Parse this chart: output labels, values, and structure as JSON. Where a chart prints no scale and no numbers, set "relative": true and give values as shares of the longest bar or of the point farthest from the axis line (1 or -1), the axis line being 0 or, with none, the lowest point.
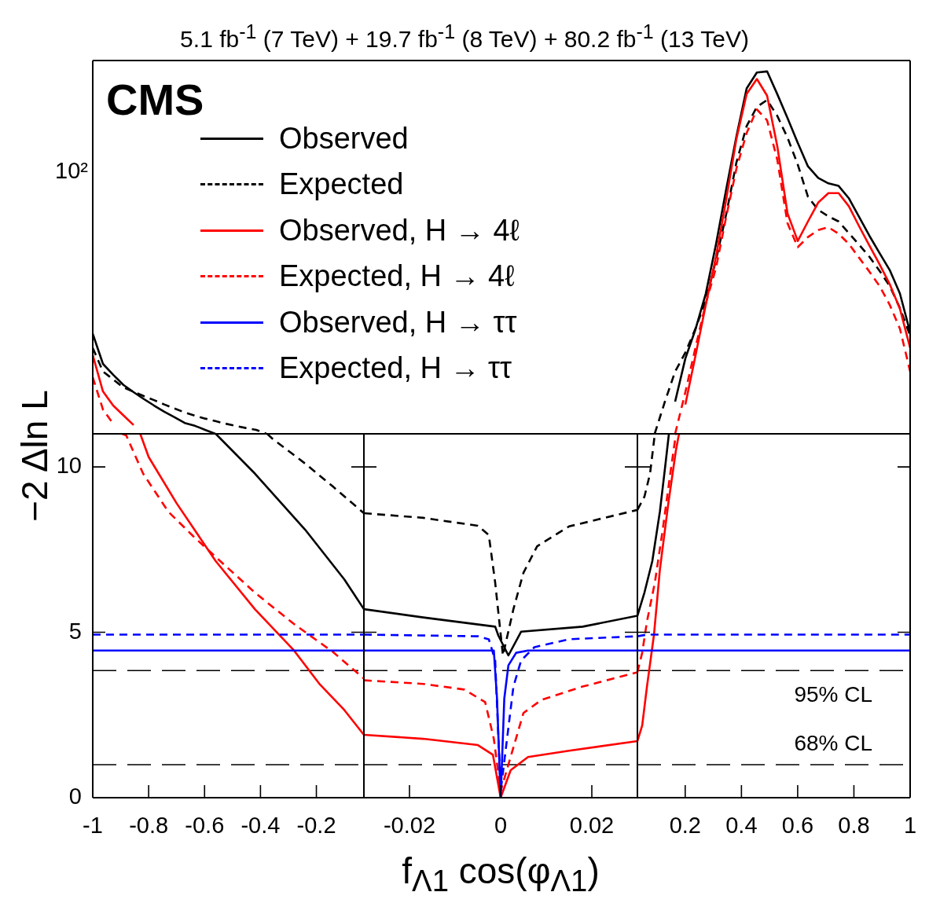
{
  "chart_data": [
    {
      "type": "line",
      "title": "5.1 fb$^{-1}$ (7 TeV) + 19.7 fb$^{-1}$ (8 TeV) + 80.2 fb$^{-1}$ (13 TeV)",
      "annotations": [
        "CMS",
        "10²"
      ],
      "legend": "top left",
      "relative": true,
      "tick_labels": false,
      "categories": [
        null,
        null,
        null,
        null,
        null,
        null,
        null,
        null,
        null,
        null,
        null,
        null,
        null,
        null,
        null,
        null,
        null,
        null,
        null,
        null,
        null,
        null,
        null,
        null,
        null,
        null,
        null,
        null,
        null,
        null,
        null,
        null,
        null,
        null,
        null,
        null,
        null,
        null,
        null,
        null,
        null,
        null,
        null,
        null,
        null,
        null,
        null,
        null,
        null,
        null,
        null,
        null,
        null,
        null,
        null,
        null,
        null,
        null,
        null,
        null,
        null,
        null,
        null,
        null,
        null,
        null,
        null,
        null,
        null,
        null,
        null,
        null,
        null,
        null,
        null,
        null,
        null,
        null,
        null,
        null,
        null
      ],
      "series": [
        {
          "name": "Observed",
          "color": "#000000",
          "values": [
            0.276,
            0.193,
            0.163,
            0.135,
            0.115,
            0.096,
            0.078,
            0.061,
            0.046,
            0.03,
            0.022,
            0.011,
            0,
            null,
            null,
            null,
            null,
            null,
            null,
            null,
            null,
            null,
            null,
            null,
            null,
            null,
            null,
            null,
            null,
            null,
            null,
            null,
            null,
            null,
            null,
            null,
            null,
            null,
            null,
            null,
            null,
            null,
            null,
            null,
            null,
            null,
            null,
            null,
            null,
            null,
            null,
            null,
            null,
            null,
            null,
            null,
            null,
            0.089,
            0.208,
            0.289,
            0.387,
            0.523,
            0.675,
            0.821,
            0.953,
            0.997,
            1,
            0.937,
            0.871,
            0.803,
            0.738,
            0.706,
            0.691,
            0.684,
            0.65,
            0.599,
            0.547,
            0.499,
            0.452,
            0.387,
            0.28
          ]
        },
        {
          "name": "Expected",
          "color": "#000000",
          "line_style": "dashed",
          "values": [
            0.237,
            0.172,
            0.15,
            0.128,
            0.116,
            0.104,
            0.093,
            0.081,
            0.07,
            0.059,
            0.05,
            0.042,
            0.035,
            0.028,
            0.022,
            0.016,
            0.011,
            0,
            null,
            null,
            null,
            null,
            null,
            null,
            null,
            null,
            null,
            null,
            null,
            null,
            null,
            null,
            null,
            null,
            null,
            null,
            null,
            null,
            null,
            null,
            null,
            null,
            null,
            null,
            null,
            null,
            null,
            null,
            null,
            null,
            null,
            null,
            null,
            null,
            null,
            0,
            0.089,
            0.172,
            0.224,
            0.291,
            0.368,
            0.48,
            0.606,
            0.749,
            0.849,
            0.902,
            0.921,
            0.877,
            0.817,
            0.743,
            0.654,
            0.618,
            0.6,
            0.586,
            0.554,
            0.522,
            0.489,
            0.45,
            0.408,
            0.347,
            0.271
          ]
        },
        {
          "name": "Observed, H → 4ℓ",
          "color": "#ff0000",
          "values": [
            0.217,
            0.117,
            0.078,
            0.051,
            0.024,
            null,
            null,
            null,
            null,
            null,
            null,
            null,
            null,
            null,
            null,
            null,
            null,
            null,
            null,
            null,
            null,
            null,
            null,
            null,
            null,
            null,
            null,
            null,
            null,
            null,
            null,
            null,
            null,
            null,
            null,
            null,
            null,
            null,
            null,
            null,
            null,
            null,
            null,
            null,
            null,
            null,
            null,
            null,
            null,
            null,
            null,
            null,
            null,
            null,
            null,
            null,
            null,
            null,
            0.081,
            0.217,
            0.356,
            0.489,
            0.647,
            0.814,
            0.938,
            0.979,
            0.933,
            0.793,
            0.608,
            0.532,
            0.586,
            0.638,
            0.664,
            0.664,
            0.628,
            0.573,
            0.52,
            0.468,
            0.413,
            0.345,
            0.237
          ]
        },
        {
          "name": "Expected, H → 4ℓ",
          "color": "#ff0000",
          "line_style": "dashed",
          "values": [
            0.156,
            0.067,
            0.028,
            null,
            null,
            null,
            null,
            null,
            null,
            null,
            null,
            null,
            null,
            null,
            null,
            null,
            null,
            null,
            null,
            null,
            null,
            null,
            null,
            null,
            null,
            null,
            null,
            null,
            null,
            null,
            null,
            null,
            null,
            null,
            null,
            null,
            null,
            null,
            null,
            null,
            null,
            null,
            null,
            null,
            null,
            null,
            null,
            null,
            null,
            null,
            null,
            null,
            null,
            null,
            null,
            null,
            null,
            0,
            0.115,
            0.239,
            0.36,
            0.458,
            0.599,
            0.732,
            0.83,
            0.895,
            0.865,
            0.756,
            0.581,
            0.515,
            0.543,
            0.562,
            0.57,
            0.552,
            0.524,
            0.486,
            0.448,
            0.408,
            0.356,
            0.29,
            0.172
          ]
        }
      ]
    },
    {
      "type": "line",
      "ylabel": "−2 Δln L",
      "xlim": [
        -1,
        -0.03
      ],
      "ylim": [
        0,
        11
      ],
      "xticks": [
        -1,
        -0.8,
        -0.6,
        -0.4,
        -0.2
      ],
      "yticks": [
        0,
        5,
        10
      ],
      "ref_lines": [
        {
          "axis": "y",
          "value": 3.84,
          "color": "#000000",
          "line_style": "dashed"
        },
        {
          "axis": "y",
          "value": 1,
          "color": "#000000",
          "line_style": "dashed"
        }
      ],
      "series": [
        {
          "name": "Observed",
          "color": "#000000",
          "x": [
            -0.56,
            -0.42,
            -0.24,
            -0.1,
            -0.03
          ],
          "values": [
            11,
            9.8,
            8.1,
            6.6,
            5.7
          ]
        },
        {
          "name": "Expected",
          "color": "#000000",
          "line_style": "dashed",
          "x": [
            -0.376,
            -0.357,
            -0.24,
            -0.14,
            -0.03
          ],
          "values": [
            11,
            10.85,
            10.1,
            9.4,
            8.6
          ]
        },
        {
          "name": "Observed, H → 4ℓ",
          "color": "#ff0000",
          "x": [
            -0.83,
            -0.8,
            -0.7,
            -0.56,
            -0.42,
            -0.28,
            -0.19,
            -0.1,
            -0.03
          ],
          "values": [
            11,
            10.3,
            8.9,
            7.15,
            5.7,
            4.45,
            3.45,
            2.65,
            1.9
          ]
        },
        {
          "name": "Expected, H → 4ℓ",
          "color": "#ff0000",
          "line_style": "dashed",
          "x": [
            -0.895,
            -0.88,
            -0.82,
            -0.73,
            -0.64,
            -0.55,
            -0.42,
            -0.28,
            -0.14,
            -0.03
          ],
          "values": [
            11,
            10.95,
            9.8,
            8.65,
            7.9,
            7.2,
            6.2,
            5.25,
            4.4,
            3.6
          ]
        },
        {
          "name": "Observed, H → ττ",
          "color": "#0000ff",
          "x": [
            -1,
            -0.03
          ],
          "values": [
            4.45,
            4.45
          ]
        },
        {
          "name": "Expected, H → ττ",
          "color": "#0000ff",
          "line_style": "dashed",
          "x": [
            -1,
            -0.03
          ],
          "values": [
            4.93,
            4.93
          ]
        }
      ]
    },
    {
      "type": "line",
      "xlabel": "f$_{Λ1}$ cos(φ$_{Λ1}$)",
      "tick_labels": "x",
      "xlim": [
        -0.03,
        0.03
      ],
      "ylim": [
        0,
        11
      ],
      "xticks": [
        -0.02,
        0,
        0.02
      ],
      "yticks": [
        {
          "value": 0,
          "label": null
        },
        {
          "value": 5,
          "label": null
        },
        {
          "value": 10,
          "label": null
        }
      ],
      "ref_lines": [
        {
          "axis": "y",
          "value": 3.84,
          "color": "#000000",
          "line_style": "dashed"
        },
        {
          "axis": "y",
          "value": 1,
          "color": "#000000",
          "line_style": "dashed"
        }
      ],
      "series": [
        {
          "color": "#000000",
          "x": [
            -0.03,
            -0.017,
            -0.0012,
            -0.0005,
            0.0017,
            0.0045,
            0.018,
            0.03
          ],
          "values": [
            5.7,
            5.45,
            5.17,
            4.9,
            4.3,
            5.02,
            5.17,
            5.5
          ]
        },
        {
          "color": "#000000",
          "line_style": "dashed",
          "x": [
            -0.03,
            -0.017,
            -0.005,
            -0.0026,
            -0.0012,
            0.0005,
            0.0028,
            0.005,
            0.008,
            0.015,
            0.03
          ],
          "values": [
            8.6,
            8.46,
            8.22,
            7.94,
            6.5,
            4.3,
            5.7,
            6.8,
            7.6,
            8.2,
            8.7
          ]
        },
        {
          "color": "#ff0000",
          "x": [
            -0.03,
            -0.017,
            -0.005,
            -0.0017,
            0,
            0.0022,
            0.006,
            0.015,
            0.03
          ],
          "values": [
            1.9,
            1.78,
            1.59,
            1.3,
            0,
            0.83,
            1.23,
            1.42,
            1.71
          ]
        },
        {
          "color": "#ff0000",
          "line_style": "dashed",
          "x": [
            -0.03,
            -0.017,
            -0.008,
            -0.0034,
            -0.0015,
            0,
            0.0017,
            0.005,
            0.009,
            0.018,
            0.03
          ],
          "values": [
            3.55,
            3.44,
            3.27,
            2.89,
            1.78,
            0.2,
            1,
            2.56,
            2.96,
            3.36,
            3.79
          ]
        },
        {
          "color": "#0000ff",
          "x": [
            -0.03,
            -0.0015,
            -0.0008,
            0,
            0.0008,
            0.0017,
            0.0034,
            0.006,
            0.03
          ],
          "values": [
            4.45,
            4.45,
            3,
            0,
            3,
            4,
            4.38,
            4.45,
            4.45
          ]
        },
        {
          "color": "#0000ff",
          "line_style": "dashed",
          "x": [
            -0.03,
            -0.005,
            -0.0026,
            -0.0012,
            0,
            0.0028,
            0.0045,
            0.0074,
            0.015,
            0.03
          ],
          "values": [
            4.93,
            4.88,
            4.79,
            4.15,
            0.2,
            3.36,
            4.15,
            4.55,
            4.79,
            4.88
          ]
        }
      ]
    },
    {
      "type": "line",
      "tick_labels": "x",
      "xlim": [
        0.03,
        1
      ],
      "ylim": [
        0,
        11
      ],
      "xticks": [
        0.2,
        0.4,
        0.6,
        0.8,
        1
      ],
      "yticks": [
        {
          "value": 0,
          "label": null
        },
        {
          "value": 5,
          "label": null
        },
        {
          "value": 10,
          "label": null
        }
      ],
      "ref_lines": [
        {
          "axis": "y",
          "value": 3.84,
          "label": "95% CL",
          "color": "#000000",
          "line_style": "dashed"
        },
        {
          "axis": "y",
          "value": 1,
          "label": "68% CL",
          "color": "#000000",
          "line_style": "dashed"
        }
      ],
      "series": [
        {
          "color": "#000000",
          "x": [
            0.03,
            0.055,
            0.083,
            0.11,
            0.13,
            0.142
          ],
          "values": [
            5.5,
            6.2,
            7.15,
            8.65,
            10.1,
            11
          ]
        },
        {
          "color": "#000000",
          "line_style": "dashed",
          "x": [
            0.03,
            0.055,
            0.075,
            0.092
          ],
          "values": [
            8.7,
            9.1,
            9.8,
            11
          ]
        },
        {
          "color": "#ff0000",
          "x": [
            0.03,
            0.047,
            0.064,
            0.089,
            0.11,
            0.14,
            0.167,
            0.178
          ],
          "values": [
            1.71,
            2.18,
            3.36,
            4.93,
            6.9,
            8.9,
            10.5,
            11
          ]
        },
        {
          "color": "#ff0000",
          "line_style": "dashed",
          "x": [
            0.03,
            0.047,
            0.064,
            0.092,
            0.12,
            0.147,
            0.167
          ],
          "values": [
            3.79,
            4.38,
            5.33,
            6.5,
            8.1,
            9.8,
            11
          ]
        },
        {
          "color": "#0000ff",
          "x": [
            0.03,
            1
          ],
          "values": [
            4.45,
            4.45
          ]
        },
        {
          "color": "#0000ff",
          "line_style": "dashed",
          "x": [
            0.03,
            0.064,
            1
          ],
          "values": [
            4.88,
            4.93,
            4.93
          ]
        }
      ]
    }
  ]
}
